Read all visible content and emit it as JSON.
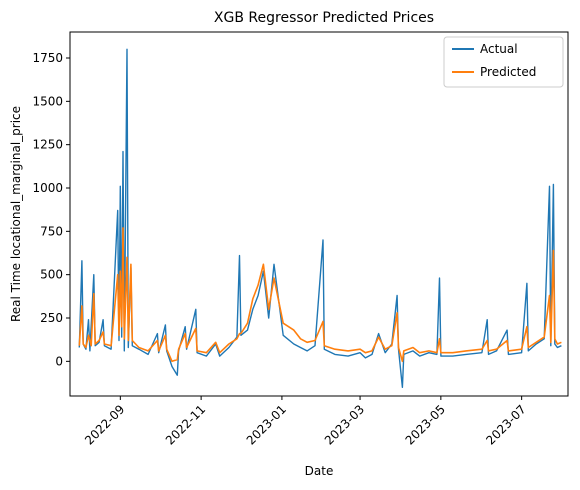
{
  "chart_data": {
    "type": "line",
    "title": "XGB Regressor Predicted Prices",
    "xlabel": "Date",
    "ylabel": "Real Time locational_marginal_price",
    "x_range": [
      "2022-07-25",
      "2023-08-05"
    ],
    "ylim": [
      -200,
      1900
    ],
    "x_ticks": [
      "2022-09",
      "2022-11",
      "2023-01",
      "2023-03",
      "2023-05",
      "2023-07"
    ],
    "y_ticks": [
      0,
      250,
      500,
      750,
      1000,
      1250,
      1500,
      1750
    ],
    "grid": false,
    "legend": "top-right",
    "series": [
      {
        "name": "Actual",
        "color": "#1f77b4",
        "points": [
          [
            "2022-08-01",
            80
          ],
          [
            "2022-08-03",
            580
          ],
          [
            "2022-08-04",
            100
          ],
          [
            "2022-08-06",
            70
          ],
          [
            "2022-08-08",
            240
          ],
          [
            "2022-08-09",
            60
          ],
          [
            "2022-08-12",
            500
          ],
          [
            "2022-08-13",
            90
          ],
          [
            "2022-08-16",
            110
          ],
          [
            "2022-08-19",
            240
          ],
          [
            "2022-08-20",
            90
          ],
          [
            "2022-08-25",
            70
          ],
          [
            "2022-08-30",
            870
          ],
          [
            "2022-08-31",
            120
          ],
          [
            "2022-09-01",
            1010
          ],
          [
            "2022-09-02",
            140
          ],
          [
            "2022-09-03",
            1210
          ],
          [
            "2022-09-04",
            60
          ],
          [
            "2022-09-06",
            1800
          ],
          [
            "2022-09-07",
            80
          ],
          [
            "2022-09-09",
            540
          ],
          [
            "2022-09-10",
            90
          ],
          [
            "2022-09-15",
            70
          ],
          [
            "2022-09-22",
            40
          ],
          [
            "2022-09-29",
            160
          ],
          [
            "2022-09-30",
            50
          ],
          [
            "2022-10-05",
            210
          ],
          [
            "2022-10-06",
            60
          ],
          [
            "2022-10-10",
            -30
          ],
          [
            "2022-10-14",
            -80
          ],
          [
            "2022-10-15",
            60
          ],
          [
            "2022-10-20",
            200
          ],
          [
            "2022-10-21",
            70
          ],
          [
            "2022-10-28",
            300
          ],
          [
            "2022-10-29",
            50
          ],
          [
            "2022-11-05",
            30
          ],
          [
            "2022-11-12",
            100
          ],
          [
            "2022-11-15",
            30
          ],
          [
            "2022-11-22",
            80
          ],
          [
            "2022-11-28",
            140
          ],
          [
            "2022-11-30",
            610
          ],
          [
            "2022-12-01",
            150
          ],
          [
            "2022-12-06",
            180
          ],
          [
            "2022-12-10",
            300
          ],
          [
            "2022-12-14",
            380
          ],
          [
            "2022-12-18",
            520
          ],
          [
            "2022-12-22",
            250
          ],
          [
            "2022-12-26",
            560
          ],
          [
            "2023-01-02",
            150
          ],
          [
            "2023-01-10",
            100
          ],
          [
            "2023-01-15",
            80
          ],
          [
            "2023-01-20",
            60
          ],
          [
            "2023-01-26",
            90
          ],
          [
            "2023-02-01",
            700
          ],
          [
            "2023-02-02",
            70
          ],
          [
            "2023-02-10",
            40
          ],
          [
            "2023-02-20",
            30
          ],
          [
            "2023-03-01",
            50
          ],
          [
            "2023-03-05",
            20
          ],
          [
            "2023-03-10",
            40
          ],
          [
            "2023-03-15",
            160
          ],
          [
            "2023-03-20",
            50
          ],
          [
            "2023-03-25",
            100
          ],
          [
            "2023-03-29",
            380
          ],
          [
            "2023-03-30",
            70
          ],
          [
            "2023-04-02",
            -150
          ],
          [
            "2023-04-03",
            40
          ],
          [
            "2023-04-10",
            60
          ],
          [
            "2023-04-15",
            30
          ],
          [
            "2023-04-22",
            50
          ],
          [
            "2023-04-28",
            40
          ],
          [
            "2023-04-30",
            480
          ],
          [
            "2023-05-01",
            30
          ],
          [
            "2023-05-10",
            30
          ],
          [
            "2023-05-20",
            40
          ],
          [
            "2023-06-01",
            50
          ],
          [
            "2023-06-05",
            240
          ],
          [
            "2023-06-06",
            40
          ],
          [
            "2023-06-12",
            60
          ],
          [
            "2023-06-20",
            180
          ],
          [
            "2023-06-21",
            40
          ],
          [
            "2023-07-01",
            50
          ],
          [
            "2023-07-05",
            450
          ],
          [
            "2023-07-06",
            60
          ],
          [
            "2023-07-12",
            100
          ],
          [
            "2023-07-18",
            130
          ],
          [
            "2023-07-22",
            1010
          ],
          [
            "2023-07-23",
            90
          ],
          [
            "2023-07-25",
            1020
          ],
          [
            "2023-07-26",
            100
          ],
          [
            "2023-07-28",
            80
          ],
          [
            "2023-07-31",
            90
          ]
        ]
      },
      {
        "name": "Predicted",
        "color": "#ff7f0e",
        "points": [
          [
            "2022-08-01",
            90
          ],
          [
            "2022-08-03",
            320
          ],
          [
            "2022-08-04",
            100
          ],
          [
            "2022-08-06",
            80
          ],
          [
            "2022-08-08",
            150
          ],
          [
            "2022-08-10",
            90
          ],
          [
            "2022-08-12",
            390
          ],
          [
            "2022-08-13",
            100
          ],
          [
            "2022-08-16",
            120
          ],
          [
            "2022-08-19",
            170
          ],
          [
            "2022-08-20",
            100
          ],
          [
            "2022-08-25",
            90
          ],
          [
            "2022-08-30",
            500
          ],
          [
            "2022-08-31",
            150
          ],
          [
            "2022-09-01",
            520
          ],
          [
            "2022-09-02",
            200
          ],
          [
            "2022-09-03",
            770
          ],
          [
            "2022-09-04",
            130
          ],
          [
            "2022-09-06",
            600
          ],
          [
            "2022-09-07",
            120
          ],
          [
            "2022-09-09",
            560
          ],
          [
            "2022-09-10",
            120
          ],
          [
            "2022-09-15",
            80
          ],
          [
            "2022-09-22",
            60
          ],
          [
            "2022-09-29",
            120
          ],
          [
            "2022-09-30",
            60
          ],
          [
            "2022-10-05",
            150
          ],
          [
            "2022-10-06",
            70
          ],
          [
            "2022-10-10",
            0
          ],
          [
            "2022-10-14",
            10
          ],
          [
            "2022-10-15",
            70
          ],
          [
            "2022-10-20",
            160
          ],
          [
            "2022-10-21",
            80
          ],
          [
            "2022-10-28",
            190
          ],
          [
            "2022-10-29",
            60
          ],
          [
            "2022-11-05",
            50
          ],
          [
            "2022-11-12",
            110
          ],
          [
            "2022-11-15",
            50
          ],
          [
            "2022-11-22",
            100
          ],
          [
            "2022-11-28",
            130
          ],
          [
            "2022-11-30",
            160
          ],
          [
            "2022-12-01",
            160
          ],
          [
            "2022-12-06",
            220
          ],
          [
            "2022-12-10",
            360
          ],
          [
            "2022-12-14",
            440
          ],
          [
            "2022-12-18",
            560
          ],
          [
            "2022-12-22",
            300
          ],
          [
            "2022-12-26",
            480
          ],
          [
            "2023-01-02",
            220
          ],
          [
            "2023-01-10",
            180
          ],
          [
            "2023-01-15",
            130
          ],
          [
            "2023-01-20",
            110
          ],
          [
            "2023-01-26",
            120
          ],
          [
            "2023-02-01",
            230
          ],
          [
            "2023-02-02",
            90
          ],
          [
            "2023-02-10",
            70
          ],
          [
            "2023-02-20",
            60
          ],
          [
            "2023-03-01",
            70
          ],
          [
            "2023-03-05",
            50
          ],
          [
            "2023-03-10",
            60
          ],
          [
            "2023-03-15",
            140
          ],
          [
            "2023-03-20",
            70
          ],
          [
            "2023-03-25",
            90
          ],
          [
            "2023-03-29",
            280
          ],
          [
            "2023-03-30",
            80
          ],
          [
            "2023-04-02",
            0
          ],
          [
            "2023-04-03",
            60
          ],
          [
            "2023-04-10",
            80
          ],
          [
            "2023-04-15",
            50
          ],
          [
            "2023-04-22",
            60
          ],
          [
            "2023-04-28",
            50
          ],
          [
            "2023-04-30",
            130
          ],
          [
            "2023-05-01",
            50
          ],
          [
            "2023-05-10",
            50
          ],
          [
            "2023-05-20",
            60
          ],
          [
            "2023-06-01",
            70
          ],
          [
            "2023-06-05",
            120
          ],
          [
            "2023-06-06",
            60
          ],
          [
            "2023-06-12",
            70
          ],
          [
            "2023-06-20",
            120
          ],
          [
            "2023-06-21",
            60
          ],
          [
            "2023-07-01",
            70
          ],
          [
            "2023-07-05",
            200
          ],
          [
            "2023-07-06",
            80
          ],
          [
            "2023-07-12",
            110
          ],
          [
            "2023-07-18",
            140
          ],
          [
            "2023-07-22",
            380
          ],
          [
            "2023-07-23",
            110
          ],
          [
            "2023-07-25",
            640
          ],
          [
            "2023-07-26",
            130
          ],
          [
            "2023-07-28",
            100
          ],
          [
            "2023-07-31",
            110
          ]
        ]
      }
    ]
  }
}
